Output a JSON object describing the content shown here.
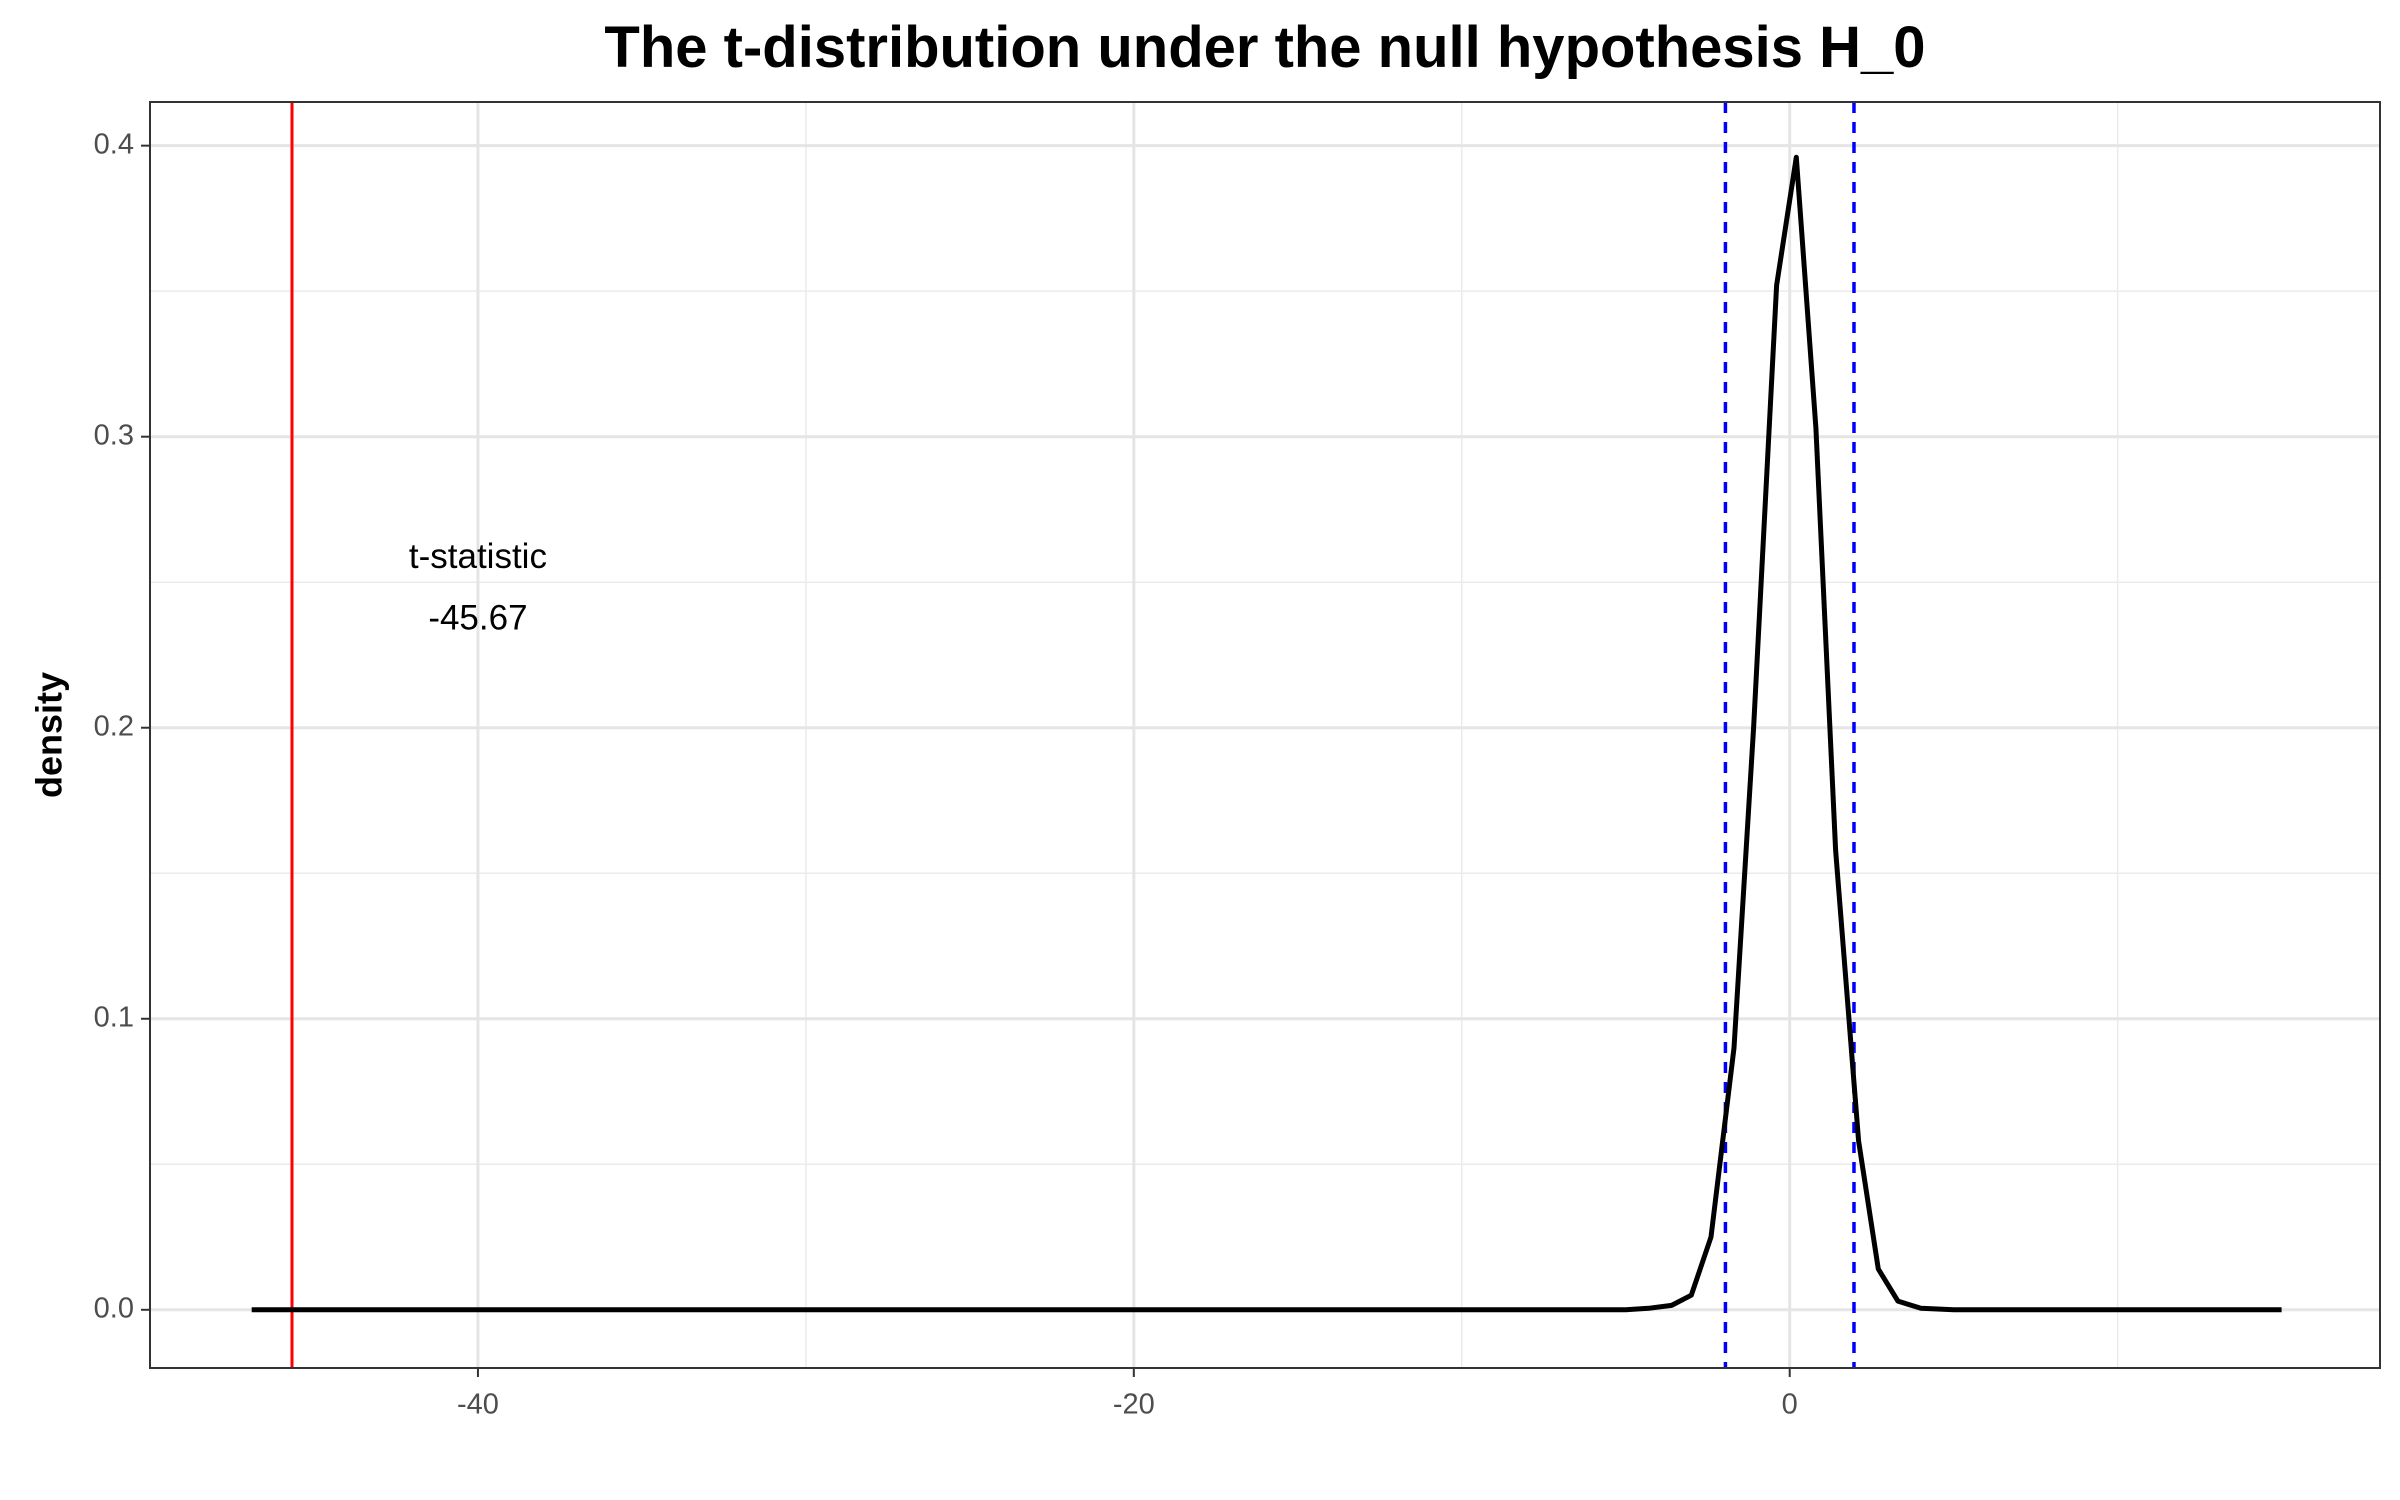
{
  "chart_data": {
    "type": "line",
    "title": "The t-distribution under the null hypothesis H_0",
    "xlabel": "",
    "ylabel": "density",
    "xlim": [
      -50,
      18
    ],
    "ylim": [
      -0.02,
      0.415
    ],
    "x_ticks": [
      -40,
      -20,
      0
    ],
    "x_tick_labels": [
      "-40",
      "-20",
      "0"
    ],
    "x_minor_ticks": [
      -50,
      -30,
      -10,
      10
    ],
    "y_ticks": [
      0.0,
      0.1,
      0.2,
      0.3,
      0.4
    ],
    "y_tick_labels": [
      "0.0",
      "0.1",
      "0.2",
      "0.3",
      "0.4"
    ],
    "y_minor_ticks": [
      0.05,
      0.15,
      0.25,
      0.35
    ],
    "grid": true,
    "theme": "bw",
    "series": [
      {
        "color": "#000000",
        "x": [
          -46.9,
          -40,
          -30,
          -20,
          -10,
          -5,
          -4.3,
          -3.6,
          -3.0,
          -2.4,
          -1.7,
          -1.1,
          -0.4,
          0.2,
          0.8,
          1.4,
          2.1,
          2.7,
          3.3,
          4.0,
          5,
          10,
          15.0
        ],
        "y": [
          0.0,
          0.0,
          0.0,
          0.0,
          0.0,
          0.0,
          0.0005,
          0.0015,
          0.005,
          0.025,
          0.09,
          0.2,
          0.352,
          0.396,
          0.303,
          0.158,
          0.058,
          0.014,
          0.003,
          0.0005,
          0.0,
          0.0,
          0.0
        ]
      }
    ],
    "reference_lines": [
      {
        "type": "vertical",
        "x": -45.67,
        "color": "#ff0000",
        "style": "solid"
      },
      {
        "type": "vertical",
        "x": -1.96,
        "color": "#0000ff",
        "style": "dashed"
      },
      {
        "type": "vertical",
        "x": 1.96,
        "color": "#0000ff",
        "style": "dashed"
      }
    ],
    "annotations": [
      {
        "text": "t-statistic",
        "x": -40,
        "y": 0.258
      },
      {
        "text": "-45.67",
        "x": -40,
        "y": 0.237
      }
    ]
  }
}
